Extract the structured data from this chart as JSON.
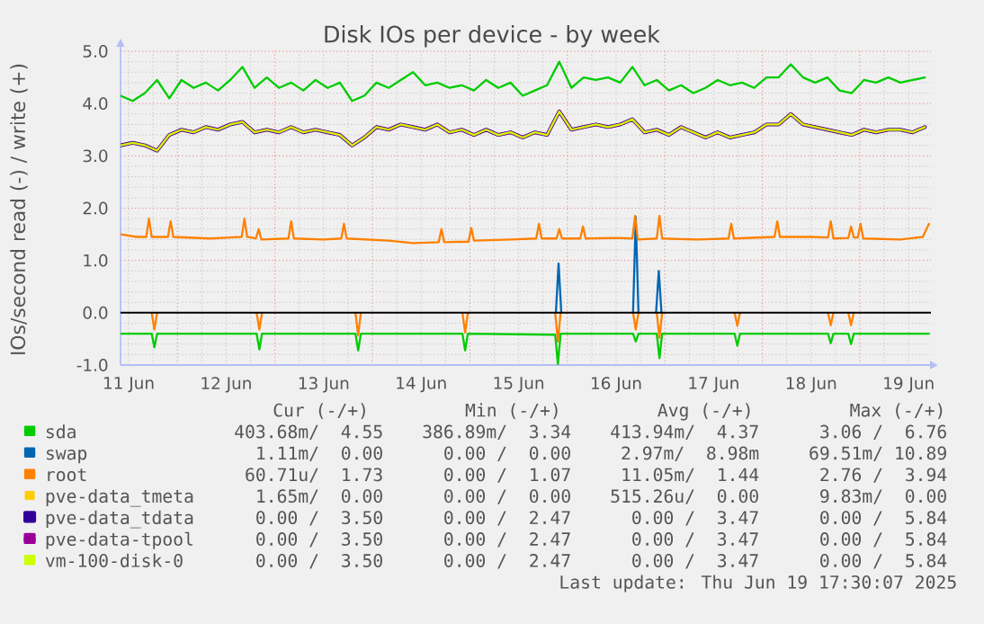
{
  "chart_data": {
    "type": "line",
    "title": "Disk IOs per device - by week",
    "ylabel": "IOs/second read (-) / write (+)",
    "x": [
      "2025-06-11T10:00",
      "2025-06-11T13:00",
      "2025-06-11T16:00",
      "2025-06-11T19:00",
      "2025-06-11T22:00",
      "2025-06-12T01:00",
      "2025-06-12T04:00",
      "2025-06-12T07:00",
      "2025-06-12T10:00",
      "2025-06-12T13:00",
      "2025-06-12T16:00",
      "2025-06-12T19:00",
      "2025-06-12T22:00",
      "2025-06-13T01:00",
      "2025-06-13T04:00",
      "2025-06-13T07:00",
      "2025-06-13T10:00",
      "2025-06-13T13:00",
      "2025-06-13T16:00",
      "2025-06-13T19:00",
      "2025-06-13T22:00",
      "2025-06-14T01:00",
      "2025-06-14T04:00",
      "2025-06-14T07:00",
      "2025-06-14T10:00",
      "2025-06-14T13:00",
      "2025-06-14T16:00",
      "2025-06-14T19:00",
      "2025-06-14T22:00",
      "2025-06-15T01:00",
      "2025-06-15T04:00",
      "2025-06-15T07:00",
      "2025-06-15T10:00",
      "2025-06-15T13:00",
      "2025-06-15T16:00",
      "2025-06-15T19:00",
      "2025-06-15T22:00",
      "2025-06-16T01:00",
      "2025-06-16T04:00",
      "2025-06-16T07:00",
      "2025-06-16T10:00",
      "2025-06-16T13:00",
      "2025-06-16T16:00",
      "2025-06-16T19:00",
      "2025-06-16T22:00",
      "2025-06-17T01:00",
      "2025-06-17T04:00",
      "2025-06-17T07:00",
      "2025-06-17T10:00",
      "2025-06-17T13:00",
      "2025-06-17T16:00",
      "2025-06-17T19:00",
      "2025-06-17T22:00",
      "2025-06-18T01:00",
      "2025-06-18T04:00",
      "2025-06-18T07:00",
      "2025-06-18T10:00",
      "2025-06-18T13:00",
      "2025-06-18T16:00",
      "2025-06-18T19:00",
      "2025-06-18T22:00",
      "2025-06-19T01:00",
      "2025-06-19T04:00",
      "2025-06-19T07:00",
      "2025-06-19T10:00",
      "2025-06-19T13:00",
      "2025-06-19T16:00"
    ],
    "xlim": [
      "2025-06-11T10:00",
      "2025-06-19T17:30"
    ],
    "xticks": [
      {
        "value": "2025-06-11T12:00",
        "label": "11 Jun"
      },
      {
        "value": "2025-06-12T00:00",
        "label": null
      },
      {
        "value": "2025-06-12T12:00",
        "label": "12 Jun"
      },
      {
        "value": "2025-06-13T00:00",
        "label": null
      },
      {
        "value": "2025-06-13T12:00",
        "label": "13 Jun"
      },
      {
        "value": "2025-06-14T00:00",
        "label": null
      },
      {
        "value": "2025-06-14T12:00",
        "label": "14 Jun"
      },
      {
        "value": "2025-06-15T00:00",
        "label": null
      },
      {
        "value": "2025-06-15T12:00",
        "label": "15 Jun"
      },
      {
        "value": "2025-06-16T00:00",
        "label": null
      },
      {
        "value": "2025-06-16T12:00",
        "label": "16 Jun"
      },
      {
        "value": "2025-06-17T00:00",
        "label": null
      },
      {
        "value": "2025-06-17T12:00",
        "label": "17 Jun"
      },
      {
        "value": "2025-06-18T00:00",
        "label": null
      },
      {
        "value": "2025-06-18T12:00",
        "label": "18 Jun"
      },
      {
        "value": "2025-06-19T00:00",
        "label": null
      },
      {
        "value": "2025-06-19T12:00",
        "label": "19 Jun"
      }
    ],
    "ylim": [
      -1,
      5
    ],
    "yticks": [
      {
        "value": -1,
        "label": "-1.0"
      },
      {
        "value": 0,
        "label": "0.0"
      },
      {
        "value": 1,
        "label": "1.0"
      },
      {
        "value": 2,
        "label": "2.0"
      },
      {
        "value": 3,
        "label": "3.0"
      },
      {
        "value": 4,
        "label": "4.0"
      },
      {
        "value": 5,
        "label": "5.0"
      }
    ],
    "grid": true,
    "legend": "bottom",
    "ref_lines": [
      {
        "axis": "y",
        "value": 0,
        "color": "#000000"
      }
    ],
    "series": [
      {
        "name": "sda",
        "color": "#00cc00",
        "values": [
          4.15,
          4.05,
          4.2,
          4.45,
          4.1,
          4.45,
          4.3,
          4.4,
          4.25,
          4.45,
          4.7,
          4.3,
          4.5,
          4.3,
          4.4,
          4.25,
          4.45,
          4.3,
          4.4,
          4.05,
          4.15,
          4.4,
          4.3,
          4.45,
          4.6,
          4.35,
          4.4,
          4.3,
          4.35,
          4.25,
          4.45,
          4.3,
          4.4,
          4.15,
          4.25,
          4.35,
          4.8,
          4.3,
          4.5,
          4.45,
          4.5,
          4.4,
          4.7,
          4.35,
          4.45,
          4.25,
          4.35,
          4.2,
          4.3,
          4.45,
          4.35,
          4.4,
          4.3,
          4.5,
          4.5,
          4.75,
          4.5,
          4.4,
          4.5,
          4.25,
          4.2,
          4.45,
          4.4,
          4.5,
          4.4,
          4.45,
          4.5
        ]
      },
      {
        "color": "#00cc00",
        "x": [
          "2025-06-11T10:00",
          "2025-06-11T17:40",
          "2025-06-11T18:20",
          "2025-06-11T19:00",
          "2025-06-12T19:30",
          "2025-06-12T20:10",
          "2025-06-12T20:50",
          "2025-06-13T19:50",
          "2025-06-13T20:30",
          "2025-06-13T21:10",
          "2025-06-14T22:10",
          "2025-06-14T22:50",
          "2025-06-14T23:30",
          "2025-06-15T21:00",
          "2025-06-15T21:40",
          "2025-06-15T22:20",
          "2025-06-16T16:10",
          "2025-06-16T16:50",
          "2025-06-16T17:30",
          "2025-06-16T22:00",
          "2025-06-16T22:40",
          "2025-06-16T23:20",
          "2025-06-17T17:10",
          "2025-06-17T17:50",
          "2025-06-17T18:30",
          "2025-06-18T16:10",
          "2025-06-18T16:50",
          "2025-06-18T17:30",
          "2025-06-18T21:10",
          "2025-06-18T21:50",
          "2025-06-18T22:30",
          "2025-06-19T17:00"
        ],
        "values": [
          -0.4,
          -0.4,
          -0.66,
          -0.4,
          -0.4,
          -0.7,
          -0.4,
          -0.4,
          -0.72,
          -0.4,
          -0.4,
          -0.72,
          -0.4,
          -0.42,
          -0.98,
          -0.4,
          -0.4,
          -0.55,
          -0.4,
          -0.4,
          -0.87,
          -0.4,
          -0.4,
          -0.63,
          -0.4,
          -0.4,
          -0.58,
          -0.4,
          -0.4,
          -0.6,
          -0.4,
          -0.4
        ]
      },
      {
        "name": "swap",
        "color": "#0066b3",
        "x": [
          "2025-06-15T21:10",
          "2025-06-15T21:50",
          "2025-06-15T22:30",
          "2025-06-16T06:00",
          "2025-06-16T16:10",
          "2025-06-16T16:50",
          "2025-06-16T17:30",
          "2025-06-16T19:30",
          "2025-06-16T21:50",
          "2025-06-16T22:30",
          "2025-06-16T23:10"
        ],
        "values": [
          0,
          0.94,
          0,
          null,
          0,
          1.83,
          0,
          null,
          0,
          0.8,
          0
        ]
      },
      {
        "name": "root",
        "color": "#ff8000",
        "x": [
          "2025-06-11T10:00",
          "2025-06-11T14:00",
          "2025-06-11T16:20",
          "2025-06-11T17:00",
          "2025-06-11T17:40",
          "2025-06-11T21:40",
          "2025-06-11T22:20",
          "2025-06-11T23:00",
          "2025-06-12T08:00",
          "2025-06-12T15:50",
          "2025-06-12T16:30",
          "2025-06-12T17:10",
          "2025-06-12T19:20",
          "2025-06-12T20:00",
          "2025-06-12T20:40",
          "2025-06-13T03:20",
          "2025-06-13T04:00",
          "2025-06-13T04:40",
          "2025-06-13T12:00",
          "2025-06-13T16:20",
          "2025-06-13T17:00",
          "2025-06-13T17:40",
          "2025-06-14T04:00",
          "2025-06-14T10:00",
          "2025-06-14T16:20",
          "2025-06-14T17:00",
          "2025-06-14T17:40",
          "2025-06-14T23:40",
          "2025-06-15T00:20",
          "2025-06-15T01:00",
          "2025-06-15T10:00",
          "2025-06-15T16:20",
          "2025-06-15T17:00",
          "2025-06-15T17:40",
          "2025-06-15T21:20",
          "2025-06-15T22:00",
          "2025-06-15T22:40",
          "2025-06-16T03:10",
          "2025-06-16T03:50",
          "2025-06-16T04:30",
          "2025-06-16T12:00",
          "2025-06-16T16:00",
          "2025-06-16T16:40",
          "2025-06-16T17:20",
          "2025-06-16T22:00",
          "2025-06-16T22:40",
          "2025-06-16T23:20",
          "2025-06-17T08:00",
          "2025-06-17T15:40",
          "2025-06-17T16:20",
          "2025-06-17T17:00",
          "2025-06-18T03:00",
          "2025-06-18T03:40",
          "2025-06-18T04:20",
          "2025-06-18T12:00",
          "2025-06-18T16:10",
          "2025-06-18T16:50",
          "2025-06-18T17:30",
          "2025-06-18T21:10",
          "2025-06-18T21:50",
          "2025-06-18T22:30",
          "2025-06-18T23:30",
          "2025-06-19T00:10",
          "2025-06-19T00:50",
          "2025-06-19T10:00",
          "2025-06-19T15:30",
          "2025-06-19T17:00"
        ],
        "values": [
          1.5,
          1.45,
          1.45,
          1.8,
          1.45,
          1.45,
          1.75,
          1.45,
          1.42,
          1.45,
          1.8,
          1.45,
          1.42,
          1.6,
          1.4,
          1.42,
          1.75,
          1.42,
          1.4,
          1.42,
          1.7,
          1.42,
          1.38,
          1.33,
          1.35,
          1.6,
          1.35,
          1.36,
          1.62,
          1.38,
          1.4,
          1.42,
          1.7,
          1.42,
          1.42,
          1.6,
          1.42,
          1.42,
          1.65,
          1.42,
          1.43,
          1.42,
          1.85,
          1.4,
          1.42,
          1.85,
          1.42,
          1.4,
          1.42,
          1.7,
          1.42,
          1.45,
          1.75,
          1.45,
          1.45,
          1.44,
          1.75,
          1.42,
          1.43,
          1.65,
          1.44,
          1.44,
          1.7,
          1.42,
          1.4,
          1.45,
          1.7
        ]
      },
      {
        "color": "#ff8000",
        "x": [
          "2025-06-11T17:40",
          "2025-06-11T18:20",
          "2025-06-11T19:00",
          "2025-06-12T06:00",
          "2025-06-12T19:30",
          "2025-06-12T20:10",
          "2025-06-12T20:50",
          "2025-06-13T06:00",
          "2025-06-13T19:50",
          "2025-06-13T20:30",
          "2025-06-13T21:10",
          "2025-06-14T06:00",
          "2025-06-14T22:10",
          "2025-06-14T22:50",
          "2025-06-14T23:30",
          "2025-06-15T06:00",
          "2025-06-15T21:00",
          "2025-06-15T21:40",
          "2025-06-15T22:20",
          "2025-06-16T06:00",
          "2025-06-16T16:10",
          "2025-06-16T16:50",
          "2025-06-16T17:30",
          "2025-06-16T19:30",
          "2025-06-16T22:00",
          "2025-06-16T22:40",
          "2025-06-16T23:20",
          "2025-06-17T06:00",
          "2025-06-17T17:10",
          "2025-06-17T17:50",
          "2025-06-17T18:30",
          "2025-06-18T00:00",
          "2025-06-18T16:10",
          "2025-06-18T16:50",
          "2025-06-18T17:30",
          "2025-06-18T19:20",
          "2025-06-18T21:10",
          "2025-06-18T21:50",
          "2025-06-18T22:30"
        ],
        "values": [
          0,
          -0.32,
          0,
          null,
          0,
          -0.32,
          0,
          null,
          0,
          -0.43,
          0,
          null,
          0,
          -0.38,
          0,
          null,
          0,
          -0.55,
          0,
          null,
          0,
          -0.32,
          0,
          null,
          0,
          -0.48,
          0,
          null,
          0,
          -0.25,
          0,
          null,
          0,
          -0.24,
          0,
          null,
          0,
          -0.24,
          0
        ]
      },
      {
        "name": "pve-data_tmeta",
        "color": "#ffcc00",
        "values": [
          null,
          null,
          null,
          null,
          null,
          null,
          null,
          null,
          null,
          null,
          null,
          null,
          null,
          null,
          null,
          null,
          null,
          null,
          null,
          null,
          null,
          null,
          null,
          null,
          null,
          null,
          null,
          null,
          null,
          null,
          null,
          null,
          null,
          null,
          null,
          null,
          null,
          null,
          null,
          null,
          null,
          null,
          null,
          null,
          null,
          null,
          null,
          null,
          null,
          null,
          null,
          null,
          null,
          null,
          null,
          null,
          null,
          null,
          null,
          null,
          null,
          null,
          null,
          null,
          null,
          null,
          null
        ]
      },
      {
        "name": "pve-data_tdata",
        "color": "#330099",
        "values": [
          3.2,
          3.25,
          3.2,
          3.1,
          3.4,
          3.5,
          3.45,
          3.55,
          3.5,
          3.6,
          3.65,
          3.45,
          3.5,
          3.45,
          3.55,
          3.45,
          3.5,
          3.45,
          3.4,
          3.2,
          3.35,
          3.55,
          3.5,
          3.6,
          3.55,
          3.5,
          3.6,
          3.45,
          3.5,
          3.4,
          3.5,
          3.4,
          3.45,
          3.35,
          3.45,
          3.4,
          3.85,
          3.5,
          3.55,
          3.6,
          3.55,
          3.6,
          3.7,
          3.45,
          3.5,
          3.4,
          3.55,
          3.45,
          3.35,
          3.45,
          3.35,
          3.4,
          3.45,
          3.6,
          3.6,
          3.8,
          3.6,
          3.55,
          3.5,
          3.45,
          3.4,
          3.5,
          3.45,
          3.5,
          3.5,
          3.45,
          3.55
        ]
      },
      {
        "name": "pve-data-tpool",
        "color": "#990099",
        "values": [
          3.2,
          3.25,
          3.2,
          3.1,
          3.4,
          3.5,
          3.45,
          3.55,
          3.5,
          3.6,
          3.65,
          3.45,
          3.5,
          3.45,
          3.55,
          3.45,
          3.5,
          3.45,
          3.4,
          3.2,
          3.35,
          3.55,
          3.5,
          3.6,
          3.55,
          3.5,
          3.6,
          3.45,
          3.5,
          3.4,
          3.5,
          3.4,
          3.45,
          3.35,
          3.45,
          3.4,
          3.85,
          3.5,
          3.55,
          3.6,
          3.55,
          3.6,
          3.7,
          3.45,
          3.5,
          3.4,
          3.55,
          3.45,
          3.35,
          3.45,
          3.35,
          3.4,
          3.45,
          3.6,
          3.6,
          3.8,
          3.6,
          3.55,
          3.5,
          3.45,
          3.4,
          3.5,
          3.45,
          3.5,
          3.5,
          3.45,
          3.55
        ]
      },
      {
        "name": "vm-100-disk-0",
        "color": "#ccff00",
        "values": [
          3.2,
          3.25,
          3.2,
          3.1,
          3.4,
          3.5,
          3.45,
          3.55,
          3.5,
          3.6,
          3.65,
          3.45,
          3.5,
          3.45,
          3.55,
          3.45,
          3.5,
          3.45,
          3.4,
          3.2,
          3.35,
          3.55,
          3.5,
          3.6,
          3.55,
          3.5,
          3.6,
          3.45,
          3.5,
          3.4,
          3.5,
          3.4,
          3.45,
          3.35,
          3.45,
          3.4,
          3.85,
          3.5,
          3.55,
          3.6,
          3.55,
          3.6,
          3.7,
          3.45,
          3.5,
          3.4,
          3.55,
          3.45,
          3.35,
          3.45,
          3.35,
          3.4,
          3.45,
          3.6,
          3.6,
          3.8,
          3.6,
          3.55,
          3.5,
          3.45,
          3.4,
          3.5,
          3.45,
          3.5,
          3.5,
          3.45,
          3.55
        ]
      }
    ],
    "annotations": [
      "Cur (-/+)",
      "Min (-/+)",
      "Avg (-/+)",
      "Max (-/+)",
      "403.68m/  4.55",
      "386.89m/  3.34",
      "413.94m/  4.37",
      "3.06 /  6.76",
      "1.11m/  0.00",
      "0.00 /  0.00",
      "2.97m/  8.98m",
      "69.51m/ 10.89",
      "60.71u/  1.73",
      "0.00 /  1.07",
      "11.05m/  1.44",
      "2.76 /  3.94",
      "1.65m/  0.00",
      "0.00 /  0.00",
      "515.26u/  0.00",
      "9.83m/  0.00",
      "0.00 /  3.50",
      "0.00 /  2.47",
      "0.00 /  3.47",
      "0.00 /  5.84",
      "0.00 /  3.50",
      "0.00 /  2.47",
      "0.00 /  3.47",
      "0.00 /  5.84",
      "0.00 /  3.50",
      "0.00 /  2.47",
      "0.00 /  3.47",
      "0.00 /  5.84",
      "Last update: Thu Jun 19 17:30:07 2025"
    ]
  }
}
